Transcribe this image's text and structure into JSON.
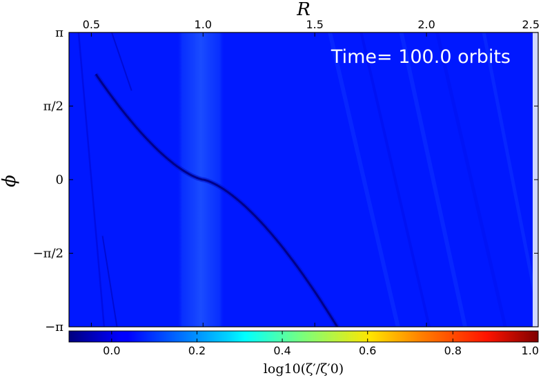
{
  "chart_data": {
    "type": "heatmap",
    "title": "",
    "xlabel": "R",
    "ylabel": "ϕ",
    "xlim": [
      0.4,
      2.5
    ],
    "ylim": [
      -3.1416,
      3.1416
    ],
    "x_ticks": [
      {
        "value": 0.5,
        "label": "0.5"
      },
      {
        "value": 1.0,
        "label": "1.0"
      },
      {
        "value": 1.5,
        "label": "1.5"
      },
      {
        "value": 2.0,
        "label": "2.0"
      },
      {
        "value": 2.5,
        "label": "2.5"
      }
    ],
    "x_axis_position": "top",
    "y_ticks": [
      {
        "value": 3.1416,
        "label": "π"
      },
      {
        "value": 1.5708,
        "label": "π/2"
      },
      {
        "value": 0,
        "label": "0"
      },
      {
        "value": -1.5708,
        "label": "−π/2"
      },
      {
        "value": -3.1416,
        "label": "−π"
      }
    ],
    "annotation": "Time= 100.0 orbits",
    "colorbar": {
      "label": "log10(ζ′/ζ′0)",
      "range": [
        -0.1,
        1.0
      ],
      "ticks": [
        {
          "value": 0.0,
          "label": "0.0"
        },
        {
          "value": 0.2,
          "label": "0.2"
        },
        {
          "value": 0.4,
          "label": "0.4"
        },
        {
          "value": 0.6,
          "label": "0.6"
        },
        {
          "value": 0.8,
          "label": "0.8"
        },
        {
          "value": 1.0,
          "label": "1.0"
        }
      ],
      "orientation": "horizontal",
      "placement": "bottom",
      "colormap": "jet"
    },
    "background_value": 0.07,
    "features": [
      {
        "name": "planet-gap-band",
        "r_range": [
          0.88,
          1.1
        ],
        "value": 0.16
      },
      {
        "name": "spiral-arm-wake",
        "min_value": -0.08
      },
      {
        "name": "planet-location",
        "r": 1.0,
        "phi": 0
      }
    ]
  }
}
